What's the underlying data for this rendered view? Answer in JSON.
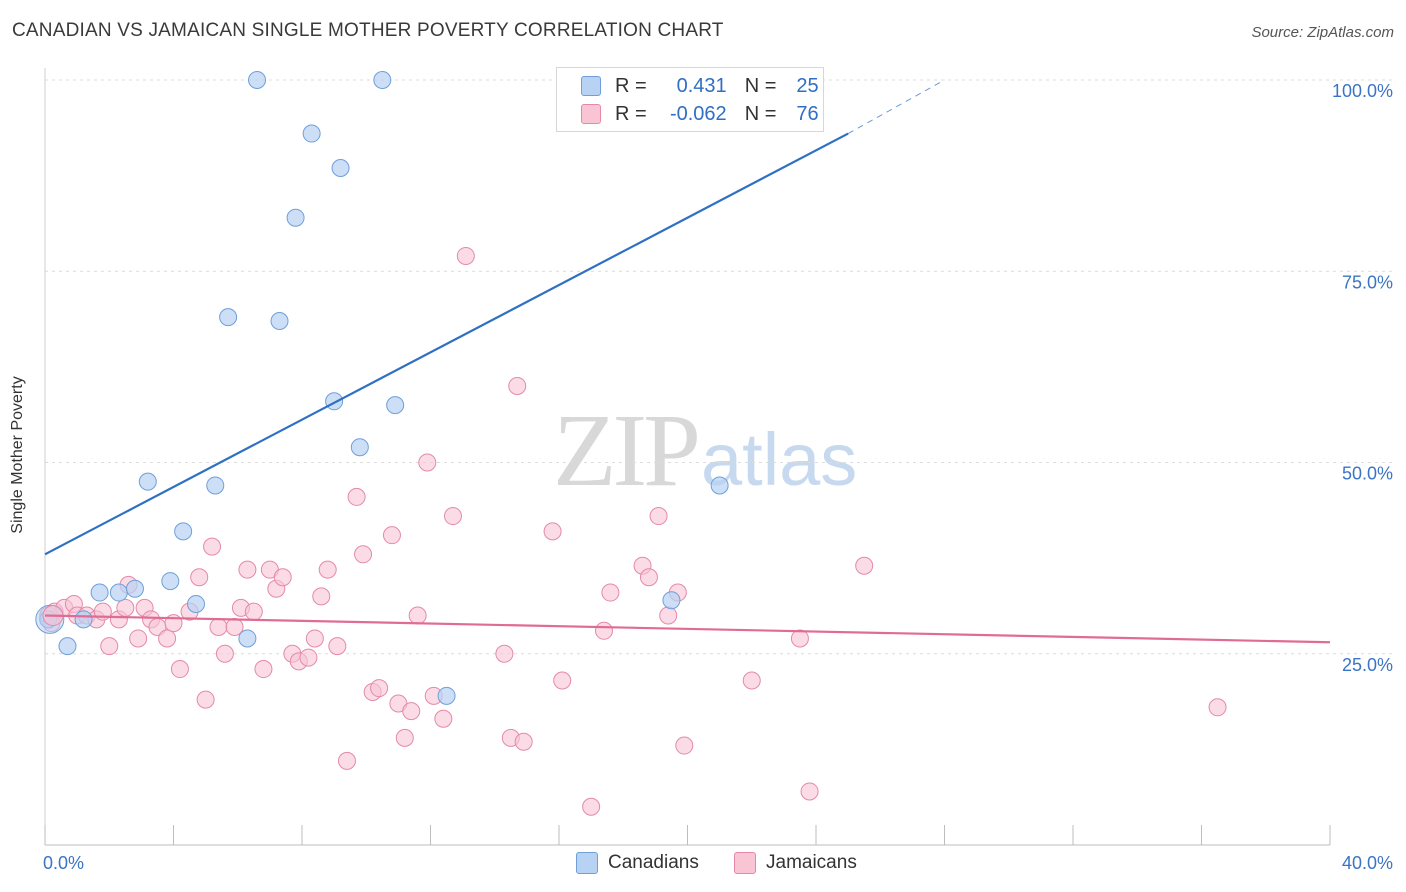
{
  "header": {
    "title": "CANADIAN VS JAMAICAN SINGLE MOTHER POVERTY CORRELATION CHART",
    "source": "Source: ZipAtlas.com"
  },
  "watermark": {
    "part1": "ZIP",
    "part2": "atlas"
  },
  "legend_top": {
    "rows": [
      {
        "r_label": "R =",
        "r_value": "0.431",
        "n_label": "N =",
        "n_value": "25"
      },
      {
        "r_label": "R =",
        "r_value": "-0.062",
        "n_label": "N =",
        "n_value": "76"
      }
    ]
  },
  "legend_bottom": {
    "items": [
      "Canadians",
      "Jamaicans"
    ]
  },
  "colors": {
    "canadian_fill": "#b7d2f3",
    "canadian_stroke": "#6f9fd8",
    "canadian_line": "#2f6fc4",
    "jamaican_fill": "#f9c5d5",
    "jamaican_stroke": "#e48aa8",
    "jamaican_line": "#e06c95",
    "axis_label": "#3a75c4"
  },
  "chart_data": {
    "type": "scatter",
    "title": "CANADIAN VS JAMAICAN SINGLE MOTHER POVERTY CORRELATION CHART",
    "xlabel": "",
    "ylabel": "Single Mother Poverty",
    "xlim": [
      0,
      40
    ],
    "ylim": [
      0,
      100
    ],
    "x_tick_labels": [
      "0.0%",
      "40.0%"
    ],
    "y_tick_labels": [
      "25.0%",
      "50.0%",
      "75.0%",
      "100.0%"
    ],
    "y_ticks": [
      25,
      50,
      75,
      100
    ],
    "grid": "horizontal dashed",
    "legend": "top-center",
    "series": [
      {
        "name": "Canadians",
        "r": 0.431,
        "n": 25,
        "trend": {
          "x0": 0,
          "y0": 38,
          "x1": 25,
          "y1": 93,
          "dashed_to_x": 28,
          "dashed_to_y": 100
        },
        "points": [
          [
            0.1,
            29.5
          ],
          [
            0.7,
            26
          ],
          [
            1.2,
            29.5
          ],
          [
            1.7,
            33
          ],
          [
            2.3,
            33
          ],
          [
            2.8,
            33.5
          ],
          [
            3.2,
            47.5
          ],
          [
            3.9,
            34.5
          ],
          [
            4.3,
            41
          ],
          [
            4.7,
            31.5
          ],
          [
            5.3,
            47
          ],
          [
            5.7,
            69
          ],
          [
            6.3,
            27
          ],
          [
            6.6,
            100
          ],
          [
            7.3,
            68.5
          ],
          [
            7.8,
            82
          ],
          [
            8.3,
            93
          ],
          [
            9.0,
            58
          ],
          [
            9.2,
            88.5
          ],
          [
            9.8,
            52
          ],
          [
            10.5,
            100
          ],
          [
            10.9,
            57.5
          ],
          [
            12.5,
            19.5
          ],
          [
            19.5,
            32
          ],
          [
            21.0,
            47
          ]
        ]
      },
      {
        "name": "Jamaicans",
        "r": -0.062,
        "n": 76,
        "trend": {
          "x0": 0,
          "y0": 30,
          "x1": 40,
          "y1": 26.5
        },
        "points": [
          [
            0.1,
            30
          ],
          [
            0.3,
            30.5
          ],
          [
            0.6,
            31
          ],
          [
            0.9,
            31.5
          ],
          [
            1.0,
            30
          ],
          [
            1.3,
            30
          ],
          [
            1.6,
            29.5
          ],
          [
            1.8,
            30.5
          ],
          [
            2.0,
            26
          ],
          [
            2.3,
            29.5
          ],
          [
            2.5,
            31
          ],
          [
            2.6,
            34
          ],
          [
            2.9,
            27
          ],
          [
            3.1,
            31
          ],
          [
            3.3,
            29.5
          ],
          [
            3.5,
            28.5
          ],
          [
            3.8,
            27
          ],
          [
            4.0,
            29
          ],
          [
            4.2,
            23
          ],
          [
            4.5,
            30.5
          ],
          [
            4.8,
            35
          ],
          [
            5.0,
            19
          ],
          [
            5.2,
            39
          ],
          [
            5.4,
            28.5
          ],
          [
            5.6,
            25
          ],
          [
            5.9,
            28.5
          ],
          [
            6.1,
            31
          ],
          [
            6.3,
            36
          ],
          [
            6.5,
            30.5
          ],
          [
            6.8,
            23
          ],
          [
            7.0,
            36
          ],
          [
            7.2,
            33.5
          ],
          [
            7.4,
            35
          ],
          [
            7.7,
            25
          ],
          [
            7.9,
            24
          ],
          [
            8.2,
            24.5
          ],
          [
            8.4,
            27
          ],
          [
            8.6,
            32.5
          ],
          [
            8.8,
            36
          ],
          [
            9.1,
            26
          ],
          [
            9.4,
            11
          ],
          [
            9.7,
            45.5
          ],
          [
            9.9,
            38
          ],
          [
            10.2,
            20
          ],
          [
            10.4,
            20.5
          ],
          [
            10.8,
            40.5
          ],
          [
            11.0,
            18.5
          ],
          [
            11.2,
            14
          ],
          [
            11.4,
            17.5
          ],
          [
            11.6,
            30
          ],
          [
            11.9,
            50
          ],
          [
            12.1,
            19.5
          ],
          [
            12.4,
            16.5
          ],
          [
            12.7,
            43
          ],
          [
            13.1,
            77
          ],
          [
            14.3,
            25
          ],
          [
            14.5,
            14
          ],
          [
            14.7,
            60
          ],
          [
            14.9,
            13.5
          ],
          [
            15.8,
            41
          ],
          [
            16.1,
            21.5
          ],
          [
            17.0,
            5
          ],
          [
            17.4,
            28
          ],
          [
            17.6,
            33
          ],
          [
            18.6,
            36.5
          ],
          [
            18.8,
            35
          ],
          [
            19.1,
            43
          ],
          [
            19.4,
            30
          ],
          [
            19.7,
            33
          ],
          [
            19.9,
            13
          ],
          [
            22.0,
            21.5
          ],
          [
            23.5,
            27
          ],
          [
            23.8,
            7
          ],
          [
            25.5,
            36.5
          ],
          [
            36.5,
            18
          ],
          [
            0.2,
            29
          ]
        ]
      }
    ]
  }
}
